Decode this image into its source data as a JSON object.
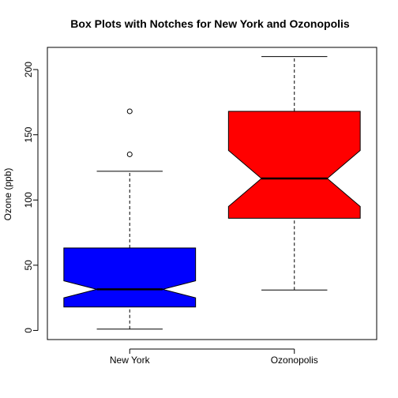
{
  "chart_data": {
    "type": "boxplot",
    "title": "Box Plots with Notches for New York and Ozonopolis",
    "xlabel": "",
    "ylabel": "Ozone (ppb)",
    "ylim": [
      -7,
      217
    ],
    "yticks": [
      0,
      50,
      100,
      150,
      200
    ],
    "notched": true,
    "categories": [
      "New York",
      "Ozonopolis"
    ],
    "boxes": [
      {
        "name": "New York",
        "color": "#0000ff",
        "whisker_low": 1,
        "q1": 18,
        "median": 31.5,
        "q3": 63.25,
        "whisker_high": 122,
        "notch_low": 25,
        "notch_high": 38,
        "outliers": [
          135,
          168
        ]
      },
      {
        "name": "Ozonopolis",
        "color": "#ff0000",
        "whisker_low": 31,
        "q1": 86,
        "median": 116.5,
        "q3": 168,
        "whisker_high": 210,
        "notch_low": 95,
        "notch_high": 138,
        "outliers": []
      }
    ]
  }
}
